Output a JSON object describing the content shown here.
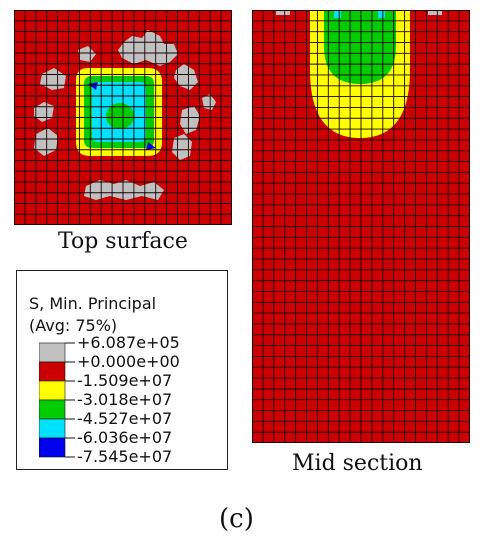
{
  "figure": {
    "label": "(c)",
    "captions": {
      "top": "Top surface",
      "mid": "Mid section"
    }
  },
  "legend": {
    "title_line1": "S, Min. Principal",
    "title_line2": "(Avg: 75%)",
    "levels": [
      "+6.087e+05",
      "+0.000e+00",
      "-1.509e+07",
      "-3.018e+07",
      "-4.527e+07",
      "-6.036e+07",
      "-7.545e+07"
    ],
    "bands": [
      {
        "range": "+6.087e+05 to +0.000e+00",
        "color": "#c0c0c0"
      },
      {
        "range": "+0.000e+00 to -1.509e+07",
        "color": "#cc0000"
      },
      {
        "range": "-1.509e+07 to -3.018e+07",
        "color": "#ffff00"
      },
      {
        "range": "-3.018e+07 to -4.527e+07",
        "color": "#00cc00"
      },
      {
        "range": "-4.527e+07 to -6.036e+07",
        "color": "#00e0ff"
      },
      {
        "range": "-6.036e+07 to -7.545e+07",
        "color": "#0000ee"
      }
    ]
  },
  "colors": {
    "gray": "#c0c0c0",
    "red": "#cc0000",
    "yellow": "#ffff00",
    "green": "#00cc00",
    "cyan": "#00e0ff",
    "blue": "#0000ee",
    "mesh": "#1a0000"
  }
}
